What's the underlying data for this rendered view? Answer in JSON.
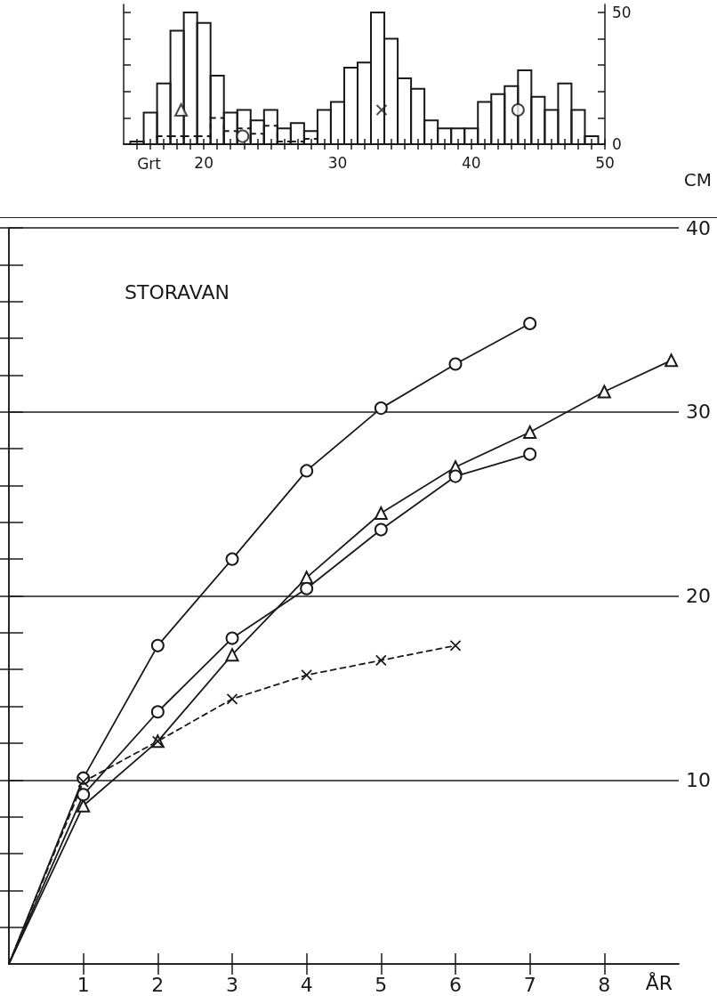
{
  "chart_data": [
    {
      "type": "histogram",
      "xlabel": "Grt",
      "xlim": [
        14,
        50
      ],
      "xticks": [
        {
          "value": 15,
          "label": null
        },
        {
          "value": 16,
          "label": null
        },
        {
          "value": 17,
          "label": null
        },
        {
          "value": 18,
          "label": null
        },
        {
          "value": 19,
          "label": null
        },
        20,
        {
          "value": 21,
          "label": null
        },
        {
          "value": 22,
          "label": null
        },
        {
          "value": 23,
          "label": null
        },
        {
          "value": 24,
          "label": null
        },
        {
          "value": 25,
          "label": null
        },
        {
          "value": 26,
          "label": null
        },
        {
          "value": 27,
          "label": null
        },
        {
          "value": 28,
          "label": null
        },
        {
          "value": 29,
          "label": null
        },
        30,
        {
          "value": 31,
          "label": null
        },
        {
          "value": 32,
          "label": null
        },
        {
          "value": 33,
          "label": null
        },
        {
          "value": 34,
          "label": null
        },
        {
          "value": 35,
          "label": null
        },
        {
          "value": 36,
          "label": null
        },
        {
          "value": 37,
          "label": null
        },
        {
          "value": 38,
          "label": null
        },
        {
          "value": 39,
          "label": null
        },
        40,
        {
          "value": 41,
          "label": null
        },
        {
          "value": 42,
          "label": null
        },
        {
          "value": 43,
          "label": null
        },
        {
          "value": 44,
          "label": null
        },
        {
          "value": 45,
          "label": null
        },
        {
          "value": 46,
          "label": null
        },
        {
          "value": 47,
          "label": null
        },
        {
          "value": 48,
          "label": null
        },
        {
          "value": 49,
          "label": null
        },
        50
      ],
      "ylim": [
        0,
        53
      ],
      "yticks": [
        0,
        {
          "value": 10,
          "label": null
        },
        {
          "value": 20,
          "label": null
        },
        {
          "value": 30,
          "label": null
        },
        {
          "value": 40,
          "label": null
        },
        50
      ],
      "series": [
        {
          "color": "#1a1a1a",
          "line_style": "solid",
          "bins": [
            14.5,
            15.5,
            16.5,
            17.5,
            18.5,
            19.5,
            20.5,
            21.5,
            22.5,
            23.5,
            24.5,
            25.5,
            26.5,
            27.5,
            28.5,
            29.5,
            30.5,
            31.5,
            32.5,
            33.5,
            34.5,
            35.5,
            36.5,
            37.5,
            38.5,
            39.5,
            40.5,
            41.5,
            42.5,
            43.5,
            44.5,
            45.5,
            46.5,
            47.5,
            48.5,
            49.5
          ],
          "values": [
            1,
            12,
            23,
            43,
            50,
            46,
            26,
            12,
            13,
            9,
            13,
            6,
            8,
            5,
            13,
            16,
            29,
            31,
            50,
            40,
            25,
            21,
            9,
            6,
            6,
            6,
            16,
            19,
            22,
            28,
            18,
            13,
            23,
            13,
            3
          ]
        },
        {
          "color": "#1a1a1a",
          "line_style": "dashed",
          "bins": [
            16.5,
            17.5,
            18.5,
            19.5,
            20.5,
            21.5,
            22.5,
            23.5,
            24.5,
            25.5,
            26.5,
            27.5,
            28.5
          ],
          "values": [
            3,
            3,
            3,
            3,
            10,
            5,
            6,
            4,
            7,
            1,
            1,
            2
          ]
        },
        {
          "type": "scatter",
          "color": "#1a1a1a",
          "marker": "triangle",
          "x": [
            18.3
          ],
          "values": [
            13
          ]
        },
        {
          "type": "scatter",
          "color": "#1a1a1a",
          "marker": "circle",
          "x": [
            22.9
          ],
          "values": [
            3
          ]
        },
        {
          "type": "scatter",
          "color": "#1a1a1a",
          "marker": "cross",
          "x": [
            33.3
          ],
          "values": [
            13
          ]
        },
        {
          "type": "scatter",
          "color": "#1a1a1a",
          "marker": "circle",
          "x": [
            43.5
          ],
          "values": [
            13
          ]
        }
      ]
    },
    {
      "type": "line",
      "xlabel": "ÅR",
      "ylabel": "CM",
      "annotations": [
        "STORAVAN"
      ],
      "grid": "y",
      "xlim": [
        0,
        9
      ],
      "xticks": [
        1,
        2,
        3,
        4,
        5,
        6,
        7,
        8
      ],
      "ylim": [
        0,
        40
      ],
      "yticks": [
        {
          "value": 2,
          "label": null
        },
        {
          "value": 4,
          "label": null
        },
        {
          "value": 6,
          "label": null
        },
        {
          "value": 8,
          "label": null
        },
        10,
        {
          "value": 12,
          "label": null
        },
        {
          "value": 14,
          "label": null
        },
        {
          "value": 16,
          "label": null
        },
        {
          "value": 18,
          "label": null
        },
        20,
        {
          "value": 22,
          "label": null
        },
        {
          "value": 24,
          "label": null
        },
        {
          "value": 26,
          "label": null
        },
        {
          "value": 28,
          "label": null
        },
        30,
        {
          "value": 32,
          "label": null
        },
        {
          "value": 34,
          "label": null
        },
        {
          "value": 36,
          "label": null
        },
        {
          "value": 38,
          "label": null
        },
        40
      ],
      "series": [
        {
          "color": "#1a1a1a",
          "marker": "circle",
          "line_style": "solid",
          "x": [
            0,
            1,
            2,
            3,
            4,
            5,
            6,
            7
          ],
          "values": [
            0,
            10.1,
            17.3,
            22.0,
            26.8,
            30.2,
            32.6,
            34.8
          ]
        },
        {
          "color": "#1a1a1a",
          "marker": "triangle",
          "line_style": "solid",
          "x": [
            0,
            1,
            2,
            3,
            4,
            5,
            6,
            7,
            8,
            8.9
          ],
          "values": [
            0,
            8.6,
            12.1,
            16.8,
            21.0,
            24.5,
            27.0,
            28.9,
            31.1,
            32.8
          ]
        },
        {
          "color": "#1a1a1a",
          "marker": "circle",
          "line_style": "solid",
          "x": [
            0,
            1,
            2,
            3,
            4,
            5,
            6,
            7
          ],
          "values": [
            0,
            9.2,
            13.7,
            17.7,
            20.4,
            23.6,
            26.5,
            27.7
          ]
        },
        {
          "color": "#1a1a1a",
          "marker": "cross",
          "line_style": "dashed",
          "x": [
            0,
            1,
            2,
            3,
            4,
            5,
            6
          ],
          "values": [
            0,
            9.9,
            12.1,
            14.4,
            15.7,
            16.5,
            17.3
          ]
        }
      ]
    }
  ]
}
